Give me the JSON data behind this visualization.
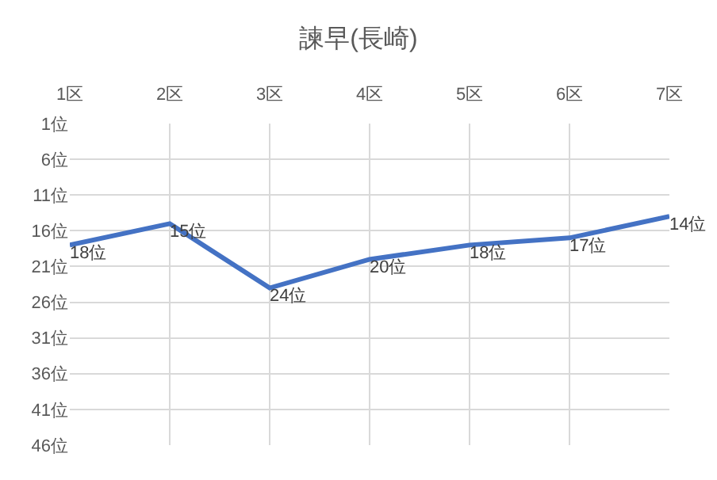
{
  "chart_data": {
    "type": "line",
    "title": "諫早(長崎)",
    "categories": [
      "1区",
      "2区",
      "3区",
      "4区",
      "5区",
      "6区",
      "7区"
    ],
    "series": [
      {
        "color": "#4472c4",
        "values": [
          18,
          15,
          24,
          20,
          18,
          17,
          14
        ],
        "value_labels": [
          "18位",
          "15位",
          "24位",
          "20位",
          "18位",
          "17位",
          "14位"
        ]
      }
    ],
    "ylim": [
      46,
      1
    ],
    "yticks": [
      {
        "value": 1,
        "label": "1位"
      },
      {
        "value": 6,
        "label": "6位"
      },
      {
        "value": 11,
        "label": "11位"
      },
      {
        "value": 16,
        "label": "16位"
      },
      {
        "value": 21,
        "label": "21位"
      },
      {
        "value": 26,
        "label": "26位"
      },
      {
        "value": 31,
        "label": "31位"
      },
      {
        "value": 36,
        "label": "36位"
      },
      {
        "value": 41,
        "label": "41位"
      },
      {
        "value": 46,
        "label": "46位"
      }
    ],
    "grid": true,
    "marker": "none",
    "line_style": "solid"
  }
}
